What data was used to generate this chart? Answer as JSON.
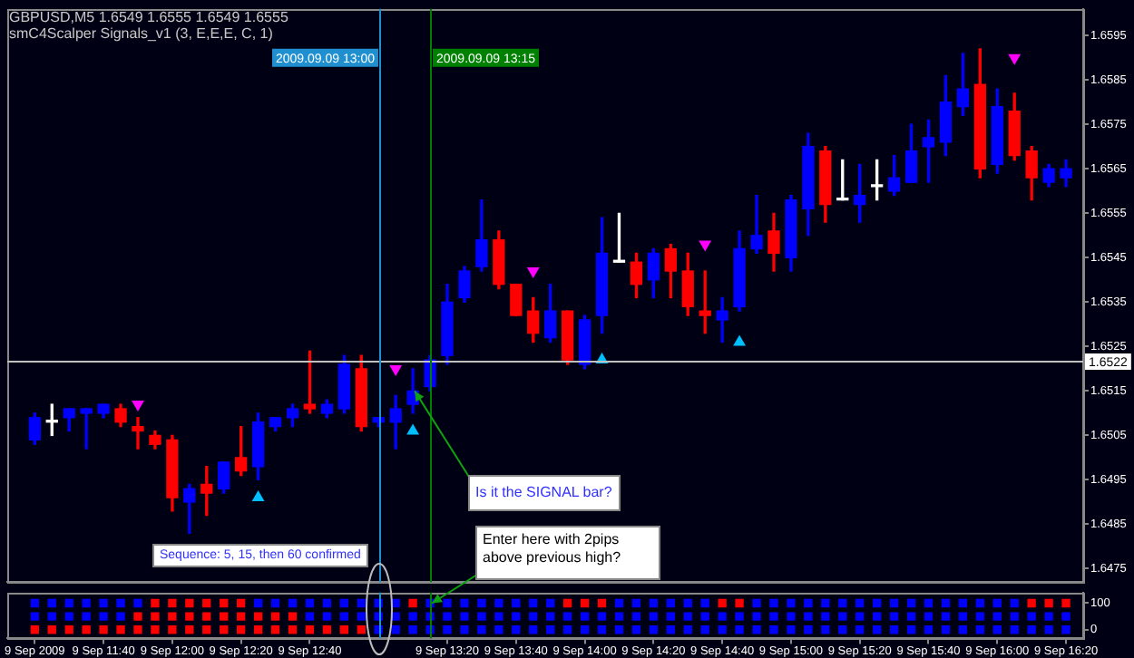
{
  "chart_data": [
    {
      "type": "candlestick",
      "title": "GBPUSD,M5  1.6549 1.6555 1.6549 1.6555",
      "subtitle": "smC4Scalper Signals_v1 (3, E,E,E, C, 1)",
      "x": [
        "2009-09-09T11:20",
        "2009-09-09T11:25",
        "2009-09-09T11:30",
        "2009-09-09T11:35",
        "2009-09-09T11:40",
        "2009-09-09T11:45",
        "2009-09-09T11:50",
        "2009-09-09T11:55",
        "2009-09-09T12:00",
        "2009-09-09T12:05",
        "2009-09-09T12:10",
        "2009-09-09T12:15",
        "2009-09-09T12:20",
        "2009-09-09T12:25",
        "2009-09-09T12:30",
        "2009-09-09T12:35",
        "2009-09-09T12:40",
        "2009-09-09T12:45",
        "2009-09-09T12:50",
        "2009-09-09T12:55",
        "2009-09-09T13:00",
        "2009-09-09T13:05",
        "2009-09-09T13:10",
        "2009-09-09T13:15",
        "2009-09-09T13:20",
        "2009-09-09T13:25",
        "2009-09-09T13:30",
        "2009-09-09T13:35",
        "2009-09-09T13:40",
        "2009-09-09T13:45",
        "2009-09-09T13:50",
        "2009-09-09T13:55",
        "2009-09-09T14:00",
        "2009-09-09T14:05",
        "2009-09-09T14:10",
        "2009-09-09T14:15",
        "2009-09-09T14:20",
        "2009-09-09T14:25",
        "2009-09-09T14:30",
        "2009-09-09T14:35",
        "2009-09-09T14:40",
        "2009-09-09T14:45",
        "2009-09-09T14:50",
        "2009-09-09T14:55",
        "2009-09-09T15:00",
        "2009-09-09T15:05",
        "2009-09-09T15:10",
        "2009-09-09T15:15",
        "2009-09-09T15:20",
        "2009-09-09T15:25",
        "2009-09-09T15:30",
        "2009-09-09T15:35",
        "2009-09-09T15:40",
        "2009-09-09T15:45",
        "2009-09-09T15:50",
        "2009-09-09T15:55",
        "2009-09-09T16:00",
        "2009-09-09T16:05",
        "2009-09-09T16:10",
        "2009-09-09T16:15",
        "2009-09-09T16:20"
      ],
      "ohlc": [
        [
          1.6504,
          1.651,
          1.6503,
          1.6509
        ],
        [
          1.6508,
          1.6512,
          1.6505,
          1.6508
        ],
        [
          1.6509,
          1.6511,
          1.6506,
          1.6511
        ],
        [
          1.651,
          1.6511,
          1.6502,
          1.6511
        ],
        [
          1.651,
          1.6512,
          1.6509,
          1.6512
        ],
        [
          1.6511,
          1.6512,
          1.6507,
          1.6508
        ],
        [
          1.6507,
          1.6509,
          1.6502,
          1.6506
        ],
        [
          1.6505,
          1.6506,
          1.6502,
          1.6503
        ],
        [
          1.6504,
          1.6505,
          1.6488,
          1.6491
        ],
        [
          1.649,
          1.6494,
          1.6483,
          1.6493
        ],
        [
          1.6494,
          1.6498,
          1.6487,
          1.6492
        ],
        [
          1.6493,
          1.6499,
          1.6492,
          1.6499
        ],
        [
          1.65,
          1.6507,
          1.6496,
          1.6497
        ],
        [
          1.6498,
          1.651,
          1.6495,
          1.6508
        ],
        [
          1.6507,
          1.6509,
          1.6506,
          1.6509
        ],
        [
          1.6509,
          1.6512,
          1.6507,
          1.6511
        ],
        [
          1.6512,
          1.6524,
          1.651,
          1.6511
        ],
        [
          1.651,
          1.6513,
          1.6509,
          1.6512
        ],
        [
          1.6511,
          1.6523,
          1.651,
          1.6521
        ],
        [
          1.652,
          1.6523,
          1.6506,
          1.6507
        ],
        [
          1.6508,
          1.6509,
          1.6507,
          1.6509
        ],
        [
          1.6508,
          1.6514,
          1.6502,
          1.6511
        ],
        [
          1.6512,
          1.652,
          1.651,
          1.6515
        ],
        [
          1.6516,
          1.6523,
          1.6515,
          1.6522
        ],
        [
          1.6523,
          1.6539,
          1.6521,
          1.6535
        ],
        [
          1.6536,
          1.6543,
          1.6535,
          1.6542
        ],
        [
          1.6543,
          1.6558,
          1.6542,
          1.6549
        ],
        [
          1.6549,
          1.6551,
          1.6538,
          1.6539
        ],
        [
          1.6539,
          1.6539,
          1.6532,
          1.6532
        ],
        [
          1.6533,
          1.6536,
          1.6526,
          1.6528
        ],
        [
          1.6527,
          1.6539,
          1.6526,
          1.6533
        ],
        [
          1.6533,
          1.6533,
          1.6521,
          1.6522
        ],
        [
          1.6521,
          1.6532,
          1.652,
          1.6531
        ],
        [
          1.6532,
          1.6554,
          1.6528,
          1.6546
        ],
        [
          1.6544,
          1.6555,
          1.6544,
          1.6544
        ],
        [
          1.6544,
          1.6546,
          1.6536,
          1.6539
        ],
        [
          1.654,
          1.6547,
          1.6536,
          1.6546
        ],
        [
          1.6547,
          1.6548,
          1.6536,
          1.6542
        ],
        [
          1.6542,
          1.6546,
          1.6532,
          1.6534
        ],
        [
          1.6533,
          1.6542,
          1.6528,
          1.6532
        ],
        [
          1.6531,
          1.6536,
          1.6526,
          1.6533
        ],
        [
          1.6534,
          1.6551,
          1.6533,
          1.6547
        ],
        [
          1.6547,
          1.6559,
          1.6546,
          1.655
        ],
        [
          1.6551,
          1.6555,
          1.6542,
          1.6546
        ],
        [
          1.6545,
          1.6559,
          1.6542,
          1.6558
        ],
        [
          1.6556,
          1.6573,
          1.655,
          1.657
        ],
        [
          1.6569,
          1.657,
          1.6553,
          1.6557
        ],
        [
          1.6558,
          1.6567,
          1.6558,
          1.6558
        ],
        [
          1.6557,
          1.6566,
          1.6553,
          1.6559
        ],
        [
          1.6561,
          1.6567,
          1.6558,
          1.6561
        ],
        [
          1.656,
          1.6568,
          1.6559,
          1.6563
        ],
        [
          1.6562,
          1.6575,
          1.6562,
          1.6569
        ],
        [
          1.657,
          1.6576,
          1.6562,
          1.6572
        ],
        [
          1.6571,
          1.6586,
          1.6568,
          1.658
        ],
        [
          1.6579,
          1.6591,
          1.6577,
          1.6583
        ],
        [
          1.6584,
          1.6592,
          1.6563,
          1.6565
        ],
        [
          1.6566,
          1.6583,
          1.6564,
          1.6579
        ],
        [
          1.6578,
          1.6582,
          1.6567,
          1.6568
        ],
        [
          1.6569,
          1.657,
          1.6558,
          1.6563
        ],
        [
          1.6562,
          1.6566,
          1.6561,
          1.6565
        ],
        [
          1.6563,
          1.6567,
          1.6561,
          1.6565
        ]
      ],
      "colors": [
        "#0000ff",
        "#ffffff",
        "#0000ff",
        "#0000ff",
        "#0000ff",
        "#ff0000",
        "#ff0000",
        "#ff0000",
        "#ff0000",
        "#0000ff",
        "#ff0000",
        "#0000ff",
        "#ff0000",
        "#0000ff",
        "#0000ff",
        "#0000ff",
        "#ff0000",
        "#0000ff",
        "#0000ff",
        "#ff0000",
        "#0000ff",
        "#0000ff",
        "#0000ff",
        "#0000ff",
        "#0000ff",
        "#0000ff",
        "#0000ff",
        "#ff0000",
        "#ff0000",
        "#ff0000",
        "#0000ff",
        "#ff0000",
        "#0000ff",
        "#0000ff",
        "#ffffff",
        "#ff0000",
        "#0000ff",
        "#ff0000",
        "#ff0000",
        "#ff0000",
        "#0000ff",
        "#0000ff",
        "#0000ff",
        "#ff0000",
        "#0000ff",
        "#0000ff",
        "#ff0000",
        "#ffffff",
        "#0000ff",
        "#ffffff",
        "#0000ff",
        "#0000ff",
        "#0000ff",
        "#0000ff",
        "#0000ff",
        "#ff0000",
        "#0000ff",
        "#ff0000",
        "#ff0000",
        "#0000ff",
        "#0000ff"
      ],
      "series": [
        {
          "type": "scatter",
          "marker": "triangle",
          "color": "#ff00ff",
          "x": [
            "2009-09-09T11:50",
            "2009-09-09T13:05",
            "2009-09-09T13:45",
            "2009-09-09T14:35",
            "2009-09-09T16:05"
          ],
          "values": [
            1.6512,
            1.652,
            1.6542,
            1.6548,
            1.659
          ]
        },
        {
          "type": "scatter",
          "marker": "triangle",
          "color": "#00bfff",
          "x": [
            "2009-09-09T12:25",
            "2009-09-09T13:10",
            "2009-09-09T14:05",
            "2009-09-09T14:45"
          ],
          "values": [
            1.6491,
            1.6506,
            1.6522,
            1.6526
          ]
        }
      ],
      "xlim": [
        "2009-09-09T11:12",
        "2009-09-09T16:25"
      ],
      "ylim": [
        1.6472,
        1.6601
      ],
      "yticks": [
        1.6475,
        1.6485,
        1.6495,
        1.6505,
        1.6515,
        1.6525,
        1.6535,
        1.6545,
        1.6555,
        1.6565,
        1.6575,
        1.6585,
        1.6595
      ],
      "tick_labels": "y",
      "ref_lines": [
        {
          "axis": "y",
          "value": 1.6522,
          "label": "1.6522",
          "color": "#c0c0c0"
        },
        {
          "axis": "x",
          "value": "2009-09-09T13:00",
          "label": "2009.09.09 13:00",
          "color": "#1f8fcf"
        },
        {
          "axis": "x",
          "value": "2009-09-09T13:15",
          "label": "2009.09.09 13:15",
          "color": "#008000"
        }
      ],
      "annotations": [
        {
          "text": "Is it the SIGNAL bar?",
          "x": "2009-09-09T13:10",
          "y": 1.6515
        },
        "Sequence: 5, 15, then 60 confirmed"
      ]
    },
    {
      "type": "scatter",
      "marker": "square",
      "x": [
        "2009-09-09T11:20",
        "2009-09-09T11:25",
        "2009-09-09T11:30",
        "2009-09-09T11:35",
        "2009-09-09T11:40",
        "2009-09-09T11:45",
        "2009-09-09T11:50",
        "2009-09-09T11:55",
        "2009-09-09T12:00",
        "2009-09-09T12:05",
        "2009-09-09T12:10",
        "2009-09-09T12:15",
        "2009-09-09T12:20",
        "2009-09-09T12:25",
        "2009-09-09T12:30",
        "2009-09-09T12:35",
        "2009-09-09T12:40",
        "2009-09-09T12:45",
        "2009-09-09T12:50",
        "2009-09-09T12:55",
        "2009-09-09T13:00",
        "2009-09-09T13:05",
        "2009-09-09T13:10",
        "2009-09-09T13:15",
        "2009-09-09T13:20",
        "2009-09-09T13:25",
        "2009-09-09T13:30",
        "2009-09-09T13:35",
        "2009-09-09T13:40",
        "2009-09-09T13:45",
        "2009-09-09T13:50",
        "2009-09-09T13:55",
        "2009-09-09T14:00",
        "2009-09-09T14:05",
        "2009-09-09T14:10",
        "2009-09-09T14:15",
        "2009-09-09T14:20",
        "2009-09-09T14:25",
        "2009-09-09T14:30",
        "2009-09-09T14:35",
        "2009-09-09T14:40",
        "2009-09-09T14:45",
        "2009-09-09T14:50",
        "2009-09-09T14:55",
        "2009-09-09T15:00",
        "2009-09-09T15:05",
        "2009-09-09T15:10",
        "2009-09-09T15:15",
        "2009-09-09T15:20",
        "2009-09-09T15:25",
        "2009-09-09T15:30",
        "2009-09-09T15:35",
        "2009-09-09T15:40",
        "2009-09-09T15:45",
        "2009-09-09T15:50",
        "2009-09-09T15:55",
        "2009-09-09T16:00",
        "2009-09-09T16:05",
        "2009-09-09T16:10",
        "2009-09-09T16:15",
        "2009-09-09T16:20"
      ],
      "series": [
        {
          "values": [
            100,
            100,
            100,
            100,
            100,
            100,
            100,
            100,
            100,
            100,
            100,
            100,
            100,
            100,
            100,
            100,
            100,
            100,
            100,
            100,
            100,
            100,
            100,
            100,
            100,
            100,
            100,
            100,
            100,
            100,
            100,
            100,
            100,
            100,
            100,
            100,
            100,
            100,
            100,
            100,
            100,
            100,
            100,
            100,
            100,
            100,
            100,
            100,
            100,
            100,
            100,
            100,
            100,
            100,
            100,
            100,
            100,
            100,
            100,
            100,
            100
          ],
          "colors": [
            "#0000ff",
            "#0000ff",
            "#0000ff",
            "#0000ff",
            "#0000ff",
            "#0000ff",
            "#0000ff",
            "#ff0000",
            "#ff0000",
            "#ff0000",
            "#ff0000",
            "#ff0000",
            "#ff0000",
            "#0000ff",
            "#0000ff",
            "#0000ff",
            "#0000ff",
            "#0000ff",
            "#0000ff",
            "#0000ff",
            "#0000ff",
            "#0000ff",
            "#ff0000",
            "#0000ff",
            "#0000ff",
            "#0000ff",
            "#0000ff",
            "#0000ff",
            "#0000ff",
            "#0000ff",
            "#0000ff",
            "#ff0000",
            "#ff0000",
            "#ff0000",
            "#0000ff",
            "#0000ff",
            "#0000ff",
            "#0000ff",
            "#0000ff",
            "#0000ff",
            "#ff0000",
            "#ff0000",
            "#0000ff",
            "#0000ff",
            "#0000ff",
            "#0000ff",
            "#0000ff",
            "#0000ff",
            "#0000ff",
            "#0000ff",
            "#0000ff",
            "#0000ff",
            "#0000ff",
            "#0000ff",
            "#0000ff",
            "#0000ff",
            "#0000ff",
            "#0000ff",
            "#ff0000",
            "#ff0000",
            "#ff0000"
          ]
        },
        {
          "values": [
            50,
            50,
            50,
            50,
            50,
            50,
            50,
            50,
            50,
            50,
            50,
            50,
            50,
            50,
            50,
            50,
            50,
            50,
            50,
            50,
            50,
            50,
            50,
            50,
            50,
            50,
            50,
            50,
            50,
            50,
            50,
            50,
            50,
            50,
            50,
            50,
            50,
            50,
            50,
            50,
            50,
            50,
            50,
            50,
            50,
            50,
            50,
            50,
            50,
            50,
            50,
            50,
            50,
            50,
            50,
            50,
            50,
            50,
            50,
            50,
            50
          ],
          "colors": [
            "#0000ff",
            "#0000ff",
            "#0000ff",
            "#0000ff",
            "#0000ff",
            "#0000ff",
            "#ff0000",
            "#ff0000",
            "#ff0000",
            "#ff0000",
            "#ff0000",
            "#ff0000",
            "#ff0000",
            "#ff0000",
            "#ff0000",
            "#ff0000",
            "#0000ff",
            "#0000ff",
            "#0000ff",
            "#0000ff",
            "#0000ff",
            "#0000ff",
            "#0000ff",
            "#0000ff",
            "#0000ff",
            "#0000ff",
            "#0000ff",
            "#0000ff",
            "#0000ff",
            "#0000ff",
            "#0000ff",
            "#0000ff",
            "#0000ff",
            "#0000ff",
            "#0000ff",
            "#0000ff",
            "#0000ff",
            "#0000ff",
            "#0000ff",
            "#0000ff",
            "#0000ff",
            "#0000ff",
            "#0000ff",
            "#0000ff",
            "#0000ff",
            "#0000ff",
            "#0000ff",
            "#0000ff",
            "#0000ff",
            "#0000ff",
            "#0000ff",
            "#0000ff",
            "#0000ff",
            "#0000ff",
            "#0000ff",
            "#0000ff",
            "#0000ff",
            "#0000ff",
            "#0000ff",
            "#0000ff",
            "#0000ff"
          ]
        },
        {
          "values": [
            0,
            0,
            0,
            0,
            0,
            0,
            0,
            0,
            0,
            0,
            0,
            0,
            0,
            0,
            0,
            0,
            0,
            0,
            0,
            0,
            0,
            0,
            0,
            0,
            0,
            0,
            0,
            0,
            0,
            0,
            0,
            0,
            0,
            0,
            0,
            0,
            0,
            0,
            0,
            0,
            0,
            0,
            0,
            0,
            0,
            0,
            0,
            0,
            0,
            0,
            0,
            0,
            0,
            0,
            0,
            0,
            0,
            0,
            0,
            0,
            0
          ],
          "colors": [
            "#ff0000",
            "#ff0000",
            "#ff0000",
            "#ff0000",
            "#ff0000",
            "#ff0000",
            "#ff0000",
            "#ff0000",
            "#ff0000",
            "#ff0000",
            "#ff0000",
            "#ff0000",
            "#ff0000",
            "#ff0000",
            "#ff0000",
            "#ff0000",
            "#ff0000",
            "#ff0000",
            "#ff0000",
            "#ff0000",
            "#0000ff",
            "#0000ff",
            "#0000ff",
            "#0000ff",
            "#0000ff",
            "#0000ff",
            "#0000ff",
            "#0000ff",
            "#0000ff",
            "#0000ff",
            "#0000ff",
            "#0000ff",
            "#0000ff",
            "#0000ff",
            "#0000ff",
            "#0000ff",
            "#0000ff",
            "#0000ff",
            "#0000ff",
            "#0000ff",
            "#0000ff",
            "#0000ff",
            "#0000ff",
            "#0000ff",
            "#0000ff",
            "#0000ff",
            "#0000ff",
            "#0000ff",
            "#0000ff",
            "#0000ff",
            "#0000ff",
            "#0000ff",
            "#0000ff",
            "#0000ff",
            "#0000ff",
            "#0000ff",
            "#0000ff",
            "#0000ff",
            "#0000ff",
            "#0000ff",
            "#0000ff"
          ]
        }
      ],
      "xlim": [
        "2009-09-09T11:12",
        "2009-09-09T16:25"
      ],
      "xticks": [
        {
          "value": "2009-09-09T11:20",
          "label": "9 Sep 2009"
        },
        {
          "value": "2009-09-09T11:40",
          "label": "9 Sep 11:40"
        },
        {
          "value": "2009-09-09T12:00",
          "label": "9 Sep 12:00"
        },
        {
          "value": "2009-09-09T12:20",
          "label": "9 Sep 12:20"
        },
        {
          "value": "2009-09-09T12:40",
          "label": "9 Sep 12:40"
        },
        {
          "value": "2009-09-09T13:20",
          "label": "9 Sep 13:20"
        },
        {
          "value": "2009-09-09T13:40",
          "label": "9 Sep 13:40"
        },
        {
          "value": "2009-09-09T14:00",
          "label": "9 Sep 14:00"
        },
        {
          "value": "2009-09-09T14:20",
          "label": "9 Sep 14:20"
        },
        {
          "value": "2009-09-09T14:40",
          "label": "9 Sep 14:40"
        },
        {
          "value": "2009-09-09T15:00",
          "label": "9 Sep 15:00"
        },
        {
          "value": "2009-09-09T15:20",
          "label": "9 Sep 15:20"
        },
        {
          "value": "2009-09-09T15:40",
          "label": "9 Sep 15:40"
        },
        {
          "value": "2009-09-09T16:00",
          "label": "9 Sep 16:00"
        },
        {
          "value": "2009-09-09T16:20",
          "label": "9 Sep 16:20"
        }
      ],
      "ylim": [
        -33,
        140
      ],
      "yticks": [
        0,
        100
      ],
      "annotations": [
        {
          "text": "Enter here with 2pips above previous high?",
          "x": "2009-09-09T13:15",
          "y": 100
        }
      ],
      "ref_lines": [
        {
          "axis": "x",
          "value": "2009-09-09T13:00",
          "color": "#1f8fcf"
        },
        {
          "axis": "x",
          "value": "2009-09-09T13:15",
          "color": "#008000"
        }
      ]
    }
  ]
}
